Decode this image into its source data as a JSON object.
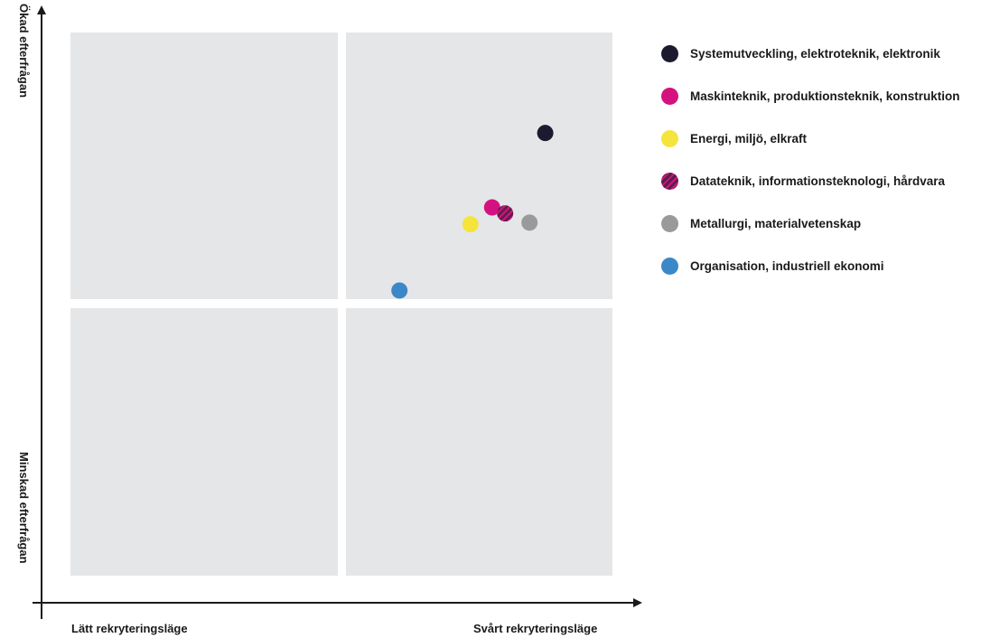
{
  "chart_data": {
    "type": "scatter",
    "title": "",
    "xlabel": "",
    "ylabel": "",
    "xlim": [
      0,
      100
    ],
    "ylim": [
      0,
      100
    ],
    "grid": "2x2 quadrants",
    "legend_position": "right",
    "y_axis_labels": {
      "top": "Ökad efterfrågan",
      "bottom": "Minskad efterfrågan"
    },
    "x_axis_labels": {
      "left": "Lätt rekryteringsläge",
      "right": "Svårt rekryteringsläge"
    },
    "series": [
      {
        "name": "Systemutveckling, elektroteknik, elektronik",
        "color": "#1b1a2e",
        "pattern": "solid",
        "x": 87.6,
        "y": 81.5
      },
      {
        "name": "Maskinteknik, produktionsteknik, konstruktion",
        "color": "#d4127f",
        "pattern": "solid",
        "x": 77.8,
        "y": 67.8
      },
      {
        "name": "Energi, miljö, elkraft",
        "color": "#f5e43c",
        "pattern": "solid",
        "x": 73.8,
        "y": 64.7
      },
      {
        "name": "Datateknik, informationsteknologi, hårdvara",
        "color": "#5a1f4a",
        "stripe_color": "#d4127f",
        "pattern": "striped",
        "x": 80.2,
        "y": 66.7
      },
      {
        "name": "Metallurgi, materialvetenskap",
        "color": "#9a9a9a",
        "pattern": "solid",
        "x": 84.7,
        "y": 65.0
      },
      {
        "name": "Organisation, industriell ekonomi",
        "color": "#3b88c8",
        "pattern": "solid",
        "x": 60.7,
        "y": 52.5
      }
    ]
  }
}
